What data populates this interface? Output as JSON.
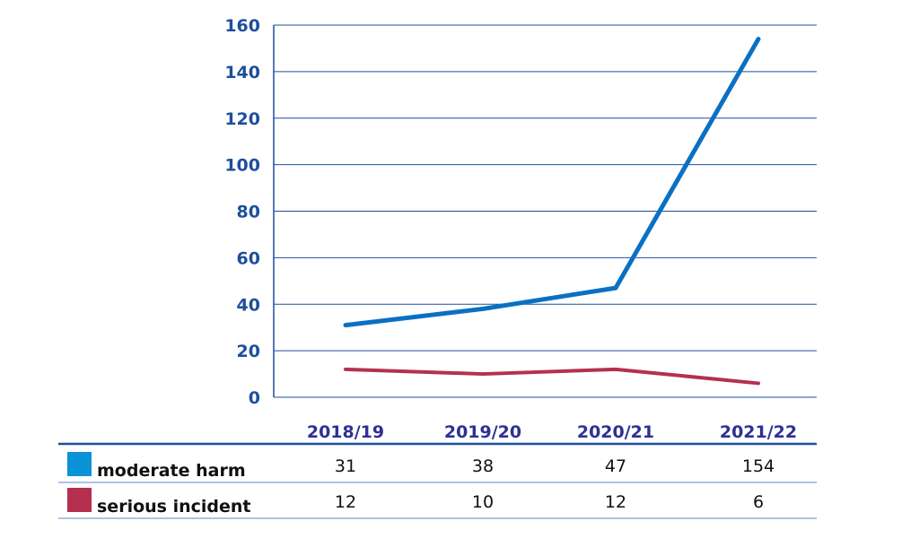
{
  "chart_data": {
    "type": "line",
    "title": "",
    "xlabel": "",
    "ylabel": "",
    "categories": [
      "2018/19",
      "2019/20",
      "2020/21",
      "2021/22"
    ],
    "ylim": [
      0,
      160
    ],
    "yticks": [
      "0",
      "20",
      "40",
      "60",
      "80",
      "100",
      "120",
      "140",
      "160"
    ],
    "grid": true,
    "legend_placement": "bottom-table",
    "series": [
      {
        "name": "moderate harm",
        "values": [
          31,
          38,
          47,
          154
        ],
        "color": "#0a70c2",
        "swatch": "#0a93d6"
      },
      {
        "name": "serious incident",
        "values": [
          12,
          10,
          12,
          6
        ],
        "color": "#b5304f",
        "swatch": "#b5304f"
      }
    ]
  }
}
